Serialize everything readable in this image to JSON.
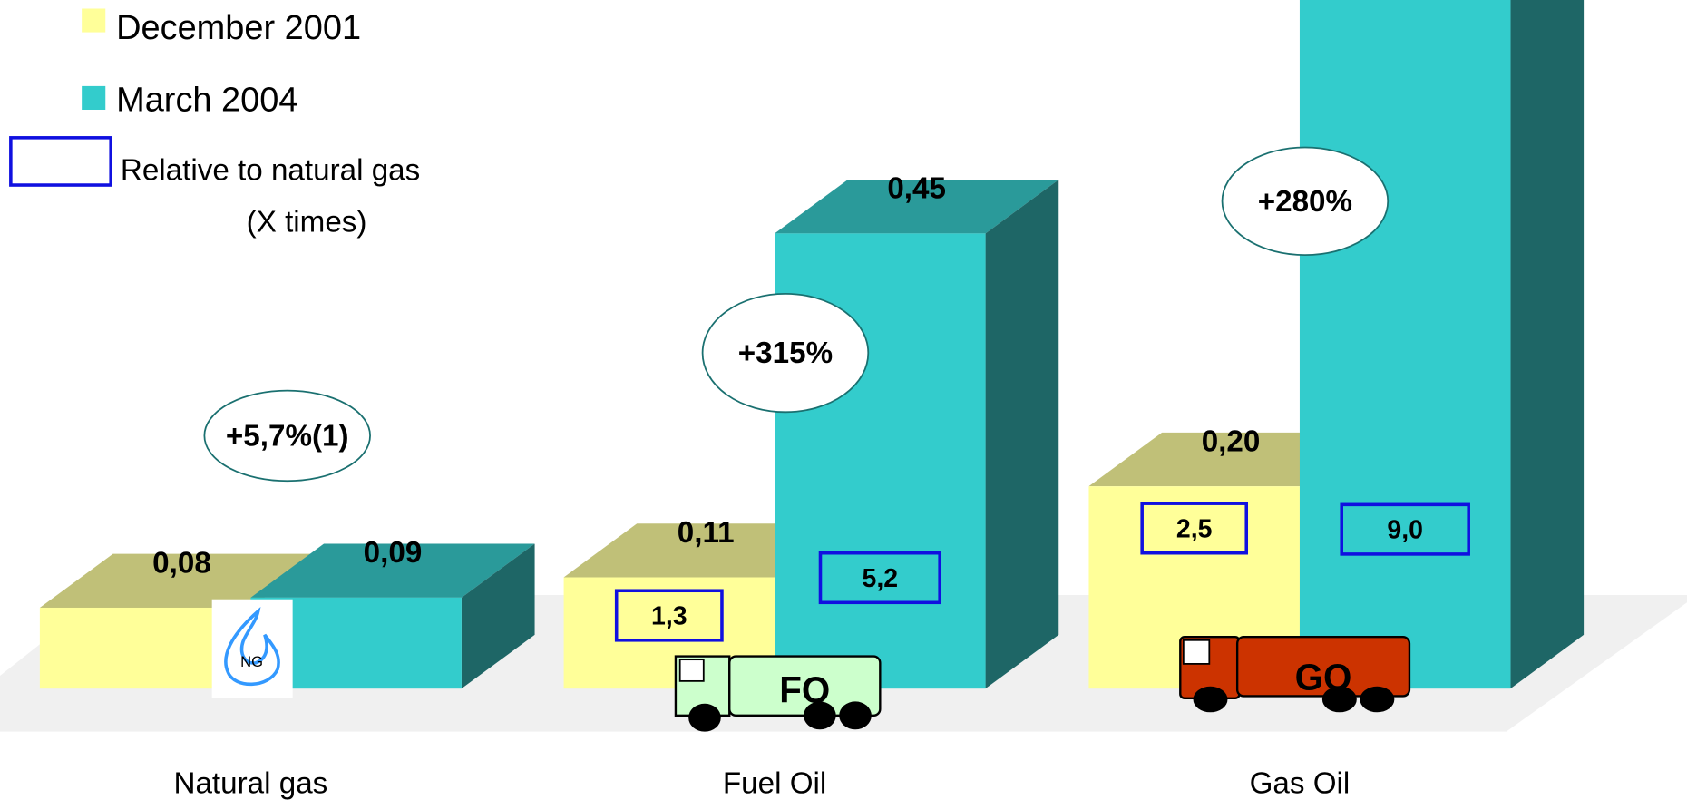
{
  "chart_data": {
    "type": "bar3d",
    "categories": [
      "Natural gas",
      "Fuel Oil",
      "Gas Oil"
    ],
    "series": [
      {
        "name": "December 2001",
        "color": "#ffff99",
        "values": [
          0.08,
          0.11,
          0.2
        ],
        "value_labels": [
          "0,08",
          "0,11",
          "0,20"
        ]
      },
      {
        "name": "March 2004",
        "color": "#33cccc",
        "values": [
          0.09,
          0.45,
          0.77
        ],
        "value_labels": [
          "0,09",
          "0,45",
          null
        ]
      }
    ],
    "relative": {
      "name": [
        "Relative to natural gas",
        "(X times)"
      ],
      "color": "#1010e0",
      "values": [
        [
          null,
          1.3,
          2.5
        ],
        [
          null,
          5.2,
          9.0
        ]
      ],
      "labels": [
        [
          null,
          "1,3",
          "2,5"
        ],
        [
          null,
          "5,2",
          "9,0"
        ]
      ]
    },
    "annotations": [
      "+5,7%(1)",
      "+315%",
      "+280%"
    ],
    "icons": [
      "NG",
      "FO",
      "GO"
    ]
  }
}
